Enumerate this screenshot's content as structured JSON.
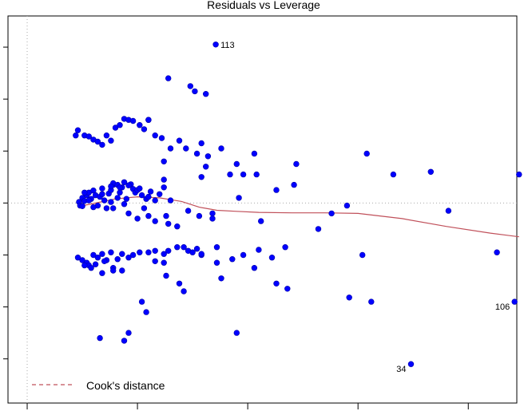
{
  "chart_data": {
    "type": "scatter",
    "title": "Residuals vs Leverage",
    "xlabel": "",
    "ylabel": "",
    "xlim": [
      -0.00087,
      0.0222
    ],
    "ylim": [
      -3.85,
      3.6
    ],
    "x_ticks": [
      0,
      0.005,
      0.01,
      0.015,
      0.02
    ],
    "y_ticks": [
      -3,
      -2,
      -1,
      0,
      1,
      2,
      3
    ],
    "grid": false,
    "reference_lines": {
      "horizontal_y": 0,
      "vertical_x": 0,
      "style": "dotted grey"
    },
    "series": [
      {
        "points": [
          [
            0.00235,
            0.02
          ],
          [
            0.0024,
            -0.05
          ],
          [
            0.0025,
            0.1
          ],
          [
            0.0026,
            0.04
          ],
          [
            0.0027,
            0.15
          ],
          [
            0.0028,
            0.2
          ],
          [
            0.0029,
            0.08
          ],
          [
            0.003,
            0.24
          ],
          [
            0.0031,
            0.15
          ],
          [
            0.0032,
            -0.05
          ],
          [
            0.0033,
            0.12
          ],
          [
            0.0034,
            0.28
          ],
          [
            0.0035,
            0.05
          ],
          [
            0.0036,
            -0.1
          ],
          [
            0.0037,
            0.18
          ],
          [
            0.0038,
            0.02
          ],
          [
            0.0039,
            0.35
          ],
          [
            0.0041,
            0.1
          ],
          [
            0.0043,
            0.3
          ],
          [
            0.0044,
            -0.02
          ],
          [
            0.0045,
            0.08
          ],
          [
            0.0047,
            0.36
          ],
          [
            0.0039,
            -0.1
          ],
          [
            0.0042,
            0.2
          ],
          [
            0.0038,
            0.25
          ],
          [
            0.0034,
            0.17
          ],
          [
            0.003,
            -0.08
          ],
          [
            0.0028,
            0.05
          ],
          [
            0.0026,
            0.2
          ],
          [
            0.0025,
            -0.06
          ],
          [
            0.0039,
            0.38
          ],
          [
            0.0041,
            0.35
          ],
          [
            0.0042,
            0.3
          ],
          [
            0.0038,
            0.32
          ],
          [
            0.0044,
            0.4
          ],
          [
            0.0046,
            0.34
          ],
          [
            0.0048,
            0.27
          ],
          [
            0.0049,
            0.2
          ],
          [
            0.005,
            0.25
          ],
          [
            0.0052,
            0.15
          ],
          [
            0.0054,
            0.08
          ],
          [
            0.0056,
            0.22
          ],
          [
            0.0051,
            0.28
          ],
          [
            0.0055,
            0.12
          ],
          [
            0.0058,
            0.05
          ],
          [
            0.006,
            0.17
          ],
          [
            0.0062,
            0.3
          ],
          [
            0.0065,
            0.05
          ],
          [
            0.0062,
            0.45
          ],
          [
            0.0053,
            -0.1
          ],
          [
            0.0046,
            -0.2
          ],
          [
            0.005,
            -0.3
          ],
          [
            0.0055,
            -0.25
          ],
          [
            0.0058,
            -0.35
          ],
          [
            0.0063,
            -0.25
          ],
          [
            0.0064,
            -0.4
          ],
          [
            0.0068,
            -0.45
          ],
          [
            0.0073,
            -0.15
          ],
          [
            0.0078,
            -0.25
          ],
          [
            0.0084,
            -0.3
          ],
          [
            0.0092,
            0.55
          ],
          [
            0.0079,
            0.5
          ],
          [
            0.0096,
            0.1
          ],
          [
            0.0062,
            0.8
          ],
          [
            0.0069,
            1.2
          ],
          [
            0.0077,
            0.95
          ],
          [
            0.0081,
            0.7
          ],
          [
            0.0023,
            -1.05
          ],
          [
            0.0025,
            -1.1
          ],
          [
            0.0027,
            -1.15
          ],
          [
            0.0028,
            -1.2
          ],
          [
            0.003,
            -1.0
          ],
          [
            0.0032,
            -1.05
          ],
          [
            0.0034,
            -0.98
          ],
          [
            0.0036,
            -1.1
          ],
          [
            0.0038,
            -0.95
          ],
          [
            0.0029,
            -1.25
          ],
          [
            0.0031,
            -1.18
          ],
          [
            0.0026,
            -1.2
          ],
          [
            0.0034,
            -1.35
          ],
          [
            0.0039,
            -1.25
          ],
          [
            0.0043,
            -1.3
          ],
          [
            0.0035,
            -1.12
          ],
          [
            0.0041,
            -1.08
          ],
          [
            0.0046,
            -1.05
          ],
          [
            0.0048,
            -1.0
          ],
          [
            0.0051,
            -0.95
          ],
          [
            0.0055,
            -0.95
          ],
          [
            0.0058,
            -0.92
          ],
          [
            0.0062,
            -0.98
          ],
          [
            0.0064,
            -0.92
          ],
          [
            0.0068,
            -0.85
          ],
          [
            0.0071,
            -0.85
          ],
          [
            0.0073,
            -0.92
          ],
          [
            0.0075,
            -0.95
          ],
          [
            0.0077,
            -0.88
          ],
          [
            0.0058,
            -1.12
          ],
          [
            0.0079,
            -1.0
          ],
          [
            0.0043,
            -0.98
          ],
          [
            0.0062,
            -1.15
          ],
          [
            0.0023,
            1.4
          ],
          [
            0.0022,
            1.3
          ],
          [
            0.0026,
            1.3
          ],
          [
            0.0028,
            1.28
          ],
          [
            0.003,
            1.22
          ],
          [
            0.0032,
            1.18
          ],
          [
            0.0034,
            1.12
          ],
          [
            0.0036,
            1.3
          ],
          [
            0.0038,
            1.2
          ],
          [
            0.004,
            1.45
          ],
          [
            0.0042,
            1.5
          ],
          [
            0.0044,
            1.62
          ],
          [
            0.0046,
            1.6
          ],
          [
            0.0048,
            1.58
          ],
          [
            0.0051,
            1.5
          ],
          [
            0.0055,
            1.6
          ],
          [
            0.0058,
            1.3
          ],
          [
            0.0061,
            1.25
          ],
          [
            0.0065,
            1.05
          ],
          [
            0.0072,
            1.05
          ],
          [
            0.0079,
            1.15
          ],
          [
            0.0082,
            0.9
          ],
          [
            0.0088,
            1.05
          ],
          [
            0.0095,
            0.75
          ],
          [
            0.0104,
            0.55
          ],
          [
            0.0113,
            0.25
          ],
          [
            0.0098,
            0.55
          ],
          [
            0.0106,
            -0.35
          ],
          [
            0.0074,
            2.25
          ],
          [
            0.0076,
            2.15
          ],
          [
            0.0081,
            2.1
          ],
          [
            0.0064,
            2.4
          ],
          [
            0.0055,
            1.6
          ],
          [
            0.0053,
            1.42
          ],
          [
            0.0121,
            0.35
          ],
          [
            0.0122,
            0.75
          ],
          [
            0.0132,
            -0.5
          ],
          [
            0.0117,
            -0.85
          ],
          [
            0.0111,
            -1.05
          ],
          [
            0.0105,
            -0.9
          ],
          [
            0.0098,
            -1.0
          ],
          [
            0.0093,
            -1.08
          ],
          [
            0.0079,
            -0.98
          ],
          [
            0.0086,
            -0.85
          ],
          [
            0.0086,
            -1.15
          ],
          [
            0.0103,
            -1.25
          ],
          [
            0.0088,
            -1.45
          ],
          [
            0.0052,
            -1.9
          ],
          [
            0.0054,
            -2.1
          ],
          [
            0.0046,
            -2.5
          ],
          [
            0.0044,
            -2.65
          ],
          [
            0.0033,
            -2.6
          ],
          [
            0.0084,
            -0.2
          ],
          [
            0.0113,
            -1.55
          ],
          [
            0.0118,
            -1.65
          ],
          [
            0.0095,
            -2.5
          ],
          [
            0.0071,
            -1.7
          ],
          [
            0.0063,
            -1.4
          ],
          [
            0.0069,
            -1.55
          ],
          [
            0.0039,
            -1.3
          ]
        ]
      },
      {
        "points": [
          [
            0.0145,
            -0.05
          ],
          [
            0.0138,
            -0.2
          ],
          [
            0.0154,
            0.95
          ],
          [
            0.0152,
            -1.0
          ],
          [
            0.0191,
            -0.15
          ],
          [
            0.0156,
            -1.9
          ],
          [
            0.0183,
            0.6
          ],
          [
            0.0146,
            -1.82
          ],
          [
            0.0166,
            0.55
          ],
          [
            0.0103,
            0.95
          ],
          [
            0.0213,
            -0.95
          ],
          [
            0.0223,
            0.55
          ]
        ]
      }
    ],
    "labeled_points": [
      {
        "label": "113",
        "x": 0.00855,
        "y": 3.05
      },
      {
        "label": "34",
        "x": 0.0174,
        "y": -3.1
      },
      {
        "label": "106",
        "x": 0.0221,
        "y": -1.9
      }
    ],
    "smoother": {
      "color": "#c0505a",
      "x": [
        0.0023,
        0.003,
        0.004,
        0.005,
        0.006,
        0.007,
        0.0078,
        0.0086,
        0.0095,
        0.0105,
        0.012,
        0.0135,
        0.015,
        0.017,
        0.019,
        0.021,
        0.0223
      ],
      "y": [
        -0.07,
        -0.01,
        0.08,
        0.12,
        0.1,
        0.03,
        -0.08,
        -0.14,
        -0.16,
        -0.18,
        -0.19,
        -0.19,
        -0.2,
        -0.3,
        -0.45,
        -0.58,
        -0.65
      ]
    },
    "legend": {
      "position": "bottom-left",
      "entries": [
        {
          "label": "Cook's distance",
          "style": "dashed",
          "color": "#c0505a"
        }
      ]
    },
    "colors": {
      "points": "#0000ff",
      "smoother": "#c0505a",
      "reference": "#aaaaaa",
      "axes": "#000000"
    }
  }
}
